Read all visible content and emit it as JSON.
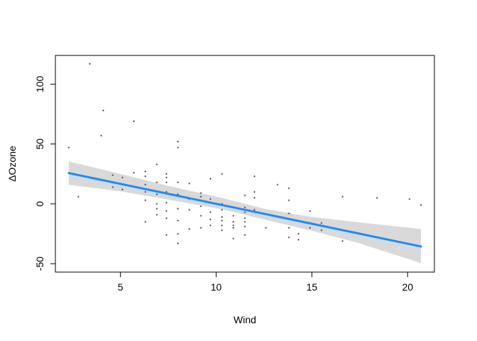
{
  "chart_data": {
    "type": "scatter",
    "title": "",
    "xlabel": "Wind",
    "ylabel": "ΔOzone",
    "xlim": [
      1.6,
      21.4
    ],
    "ylim": [
      -57,
      124
    ],
    "xticks": [
      5,
      10,
      15,
      20
    ],
    "yticks": [
      -50,
      0,
      50,
      100
    ],
    "grid": false,
    "legend": "none",
    "colors": {
      "points": "#555555",
      "fit_line": "#1a8cff",
      "band": "#d9d9d9",
      "axis": "#000000"
    },
    "points": [
      [
        2.3,
        47
      ],
      [
        2.8,
        6
      ],
      [
        3.4,
        117
      ],
      [
        4.0,
        57
      ],
      [
        4.1,
        78
      ],
      [
        4.6,
        24
      ],
      [
        4.6,
        14
      ],
      [
        5.1,
        22
      ],
      [
        5.1,
        12
      ],
      [
        5.7,
        69
      ],
      [
        5.7,
        26
      ],
      [
        6.3,
        27
      ],
      [
        6.3,
        23
      ],
      [
        6.3,
        16
      ],
      [
        6.3,
        10
      ],
      [
        6.3,
        3
      ],
      [
        6.3,
        -15
      ],
      [
        6.9,
        33
      ],
      [
        6.9,
        18
      ],
      [
        6.9,
        8
      ],
      [
        6.9,
        0
      ],
      [
        6.9,
        -4
      ],
      [
        6.9,
        -9
      ],
      [
        7.4,
        25
      ],
      [
        7.4,
        22
      ],
      [
        7.4,
        18
      ],
      [
        7.4,
        10
      ],
      [
        7.4,
        1
      ],
      [
        7.4,
        -6
      ],
      [
        7.4,
        -12
      ],
      [
        7.4,
        -26
      ],
      [
        8.0,
        52
      ],
      [
        8.0,
        47
      ],
      [
        8.0,
        18
      ],
      [
        8.0,
        8
      ],
      [
        8.0,
        -4
      ],
      [
        8.0,
        -14
      ],
      [
        8.0,
        -25
      ],
      [
        8.0,
        -33
      ],
      [
        8.6,
        17
      ],
      [
        8.6,
        4
      ],
      [
        8.6,
        -5
      ],
      [
        8.6,
        -21
      ],
      [
        9.2,
        9
      ],
      [
        9.2,
        6
      ],
      [
        9.2,
        -2
      ],
      [
        9.2,
        -10
      ],
      [
        9.2,
        -20
      ],
      [
        9.7,
        21
      ],
      [
        9.7,
        4
      ],
      [
        9.7,
        -7
      ],
      [
        9.7,
        -13
      ],
      [
        9.7,
        -18
      ],
      [
        10.3,
        25
      ],
      [
        10.3,
        0
      ],
      [
        10.3,
        -5
      ],
      [
        10.3,
        -11
      ],
      [
        10.3,
        -14
      ],
      [
        10.3,
        -18
      ],
      [
        10.3,
        -22
      ],
      [
        10.9,
        -10
      ],
      [
        10.9,
        -15
      ],
      [
        10.9,
        -18
      ],
      [
        10.9,
        -20
      ],
      [
        10.9,
        -29
      ],
      [
        11.5,
        7
      ],
      [
        11.5,
        -3
      ],
      [
        11.5,
        -7
      ],
      [
        11.5,
        -12
      ],
      [
        11.5,
        -15
      ],
      [
        11.5,
        -19
      ],
      [
        11.5,
        -26
      ],
      [
        12.0,
        23
      ],
      [
        12.0,
        10
      ],
      [
        12.0,
        5
      ],
      [
        12.0,
        -5
      ],
      [
        12.6,
        -20
      ],
      [
        13.2,
        16
      ],
      [
        13.8,
        13
      ],
      [
        13.8,
        3
      ],
      [
        13.8,
        -8
      ],
      [
        13.8,
        -20
      ],
      [
        13.8,
        -28
      ],
      [
        14.3,
        -25
      ],
      [
        14.3,
        -30
      ],
      [
        14.9,
        -6
      ],
      [
        14.9,
        -16
      ],
      [
        14.9,
        -20
      ],
      [
        15.5,
        -16
      ],
      [
        15.5,
        -22
      ],
      [
        16.6,
        6
      ],
      [
        16.6,
        -31
      ],
      [
        18.4,
        5
      ],
      [
        20.1,
        4
      ],
      [
        20.7,
        -1
      ]
    ],
    "fit": {
      "x": [
        2.3,
        20.7
      ],
      "y": [
        25.7,
        -35.6
      ]
    },
    "band": {
      "x": [
        2.3,
        5.0,
        7.5,
        10.3,
        12.5,
        15.0,
        17.5,
        20.7
      ],
      "upper": [
        35.5,
        25.0,
        15.0,
        5.0,
        -4.0,
        -11.0,
        -15.5,
        -21.0
      ],
      "lower": [
        15.9,
        10.5,
        3.5,
        -4.5,
        -13.0,
        -22.5,
        -33.0,
        -49.5
      ]
    }
  }
}
